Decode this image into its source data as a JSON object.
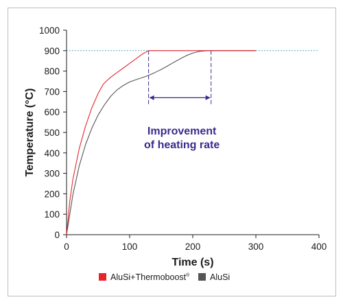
{
  "chart_data": {
    "type": "line",
    "title": "",
    "xlabel": "Time (s)",
    "ylabel": "Temperature (°C)",
    "xlim": [
      0,
      400
    ],
    "ylim": [
      0,
      1000
    ],
    "x_ticks": [
      "0",
      "100",
      "200",
      "300",
      "400"
    ],
    "y_ticks": [
      "0",
      "100",
      "200",
      "300",
      "400",
      "500",
      "600",
      "700",
      "800",
      "900",
      "1000"
    ],
    "grid": false,
    "legend_position": "bottom",
    "reference_line": {
      "y": 900,
      "style": "dotted",
      "color": "#5aa7bf"
    },
    "series": [
      {
        "name": "AluSi+Thermoboost",
        "name_superscript": "®",
        "color": "#e8232b",
        "x": [
          0,
          5,
          10,
          20,
          30,
          40,
          50,
          58,
          62,
          70,
          80,
          90,
          100,
          110,
          120,
          130,
          140,
          160,
          180,
          200,
          220,
          240,
          260,
          280,
          300
        ],
        "y": [
          0,
          160,
          270,
          420,
          530,
          620,
          690,
          735,
          748,
          770,
          793,
          815,
          838,
          860,
          883,
          900,
          900,
          900,
          900,
          900,
          900,
          900,
          900,
          900,
          900
        ]
      },
      {
        "name": "AluSi",
        "color": "#555555",
        "x": [
          0,
          10,
          20,
          30,
          40,
          50,
          60,
          70,
          80,
          90,
          100,
          110,
          120,
          130,
          140,
          150,
          160,
          170,
          180,
          190,
          200,
          210,
          220,
          230,
          240,
          260,
          280,
          300
        ],
        "y": [
          0,
          195,
          335,
          440,
          520,
          585,
          635,
          677,
          708,
          730,
          747,
          758,
          768,
          779,
          793,
          808,
          825,
          843,
          860,
          876,
          888,
          896,
          899,
          900,
          900,
          900,
          900,
          900
        ]
      }
    ],
    "annotation": {
      "lines": [
        "Improvement",
        "of heating rate"
      ],
      "x_start": 130,
      "x_end": 229,
      "arrow_y": 670,
      "color": "#3b2a8c"
    }
  }
}
